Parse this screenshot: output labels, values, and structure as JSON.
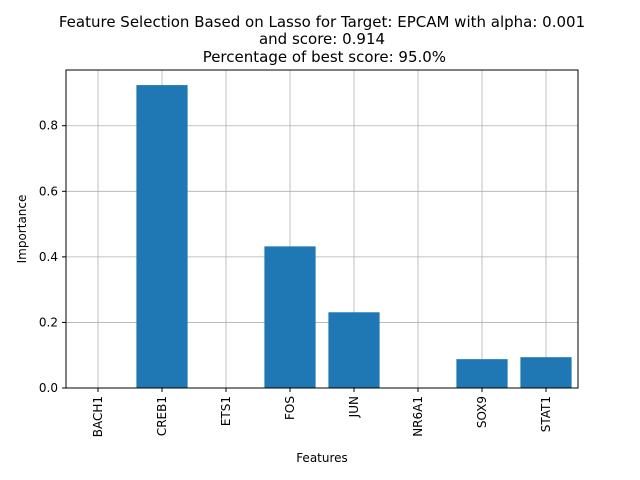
{
  "chart_data": {
    "type": "bar",
    "title_lines": [
      "Feature Selection Based on Lasso for Target: EPCAM with alpha: 0.001",
      "and score: 0.914",
      " Percentage of best score: 95.0%"
    ],
    "xlabel": "Features",
    "ylabel": "Importance",
    "categories": [
      "BACH1",
      "CREB1",
      "ETS1",
      "FOS",
      "JUN",
      "NR6A1",
      "SOX9",
      "STAT1"
    ],
    "values": [
      0.0,
      0.924,
      0.0,
      0.432,
      0.231,
      0.0,
      0.088,
      0.094
    ],
    "ylim": [
      0,
      0.97
    ],
    "yticks": [
      0.0,
      0.2,
      0.4,
      0.6,
      0.8
    ],
    "ytick_labels": [
      "0.0",
      "0.2",
      "0.4",
      "0.6",
      "0.8"
    ],
    "grid": true,
    "bar_color": "#1f77b4",
    "grid_color": "#b0b0b0"
  }
}
